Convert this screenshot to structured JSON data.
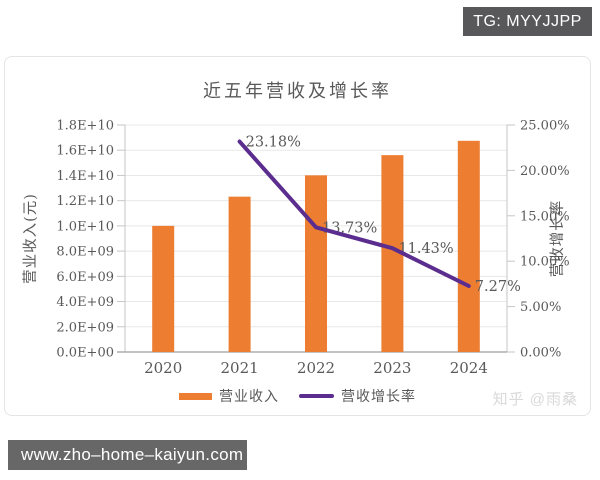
{
  "badge": {
    "text": "TG: MYYJJPP",
    "bg": "#58585b"
  },
  "url_bar": {
    "text": "www.zho–home–kaiyun.com",
    "bg": "#676767"
  },
  "watermark": {
    "text": "知乎 @雨桑"
  },
  "chart_data": {
    "type": "bar",
    "subtype": "bar-line-combo",
    "title": "近五年营收及增长率",
    "categories": [
      "2020",
      "2021",
      "2022",
      "2023",
      "2024"
    ],
    "series": [
      {
        "name": "营业收入",
        "type": "bar",
        "axis": "left",
        "color": "#ED7D31",
        "values": [
          10000000000,
          12318000000,
          14009000000,
          15610000000,
          16745000000
        ]
      },
      {
        "name": "营收增长率",
        "type": "line",
        "axis": "right",
        "color": "#5B2D8E",
        "values": [
          null,
          23.18,
          13.73,
          11.43,
          7.27
        ],
        "data_labels": [
          "",
          "23.18%",
          "13.73%",
          "11.43%",
          "7.27%"
        ]
      }
    ],
    "left_axis": {
      "title": "营业收入(元)",
      "min": 0,
      "max": 18000000000,
      "ticks": [
        "0.0E+00",
        "2.0E+09",
        "4.0E+09",
        "6.0E+09",
        "8.0E+09",
        "1.0E+10",
        "1.2E+10",
        "1.4E+10",
        "1.6E+10",
        "1.8E+10"
      ]
    },
    "right_axis": {
      "title": "营收增长率",
      "min": 0,
      "max": 25,
      "ticks": [
        "0.00%",
        "5.00%",
        "10.00%",
        "15.00%",
        "20.00%",
        "25.00%"
      ]
    },
    "grid": true,
    "legend_position": "bottom",
    "colors": {
      "grid": "#e8e8e8",
      "axis": "#c6c6c6",
      "baseline": "#9e9e9e",
      "text": "#595959"
    }
  }
}
